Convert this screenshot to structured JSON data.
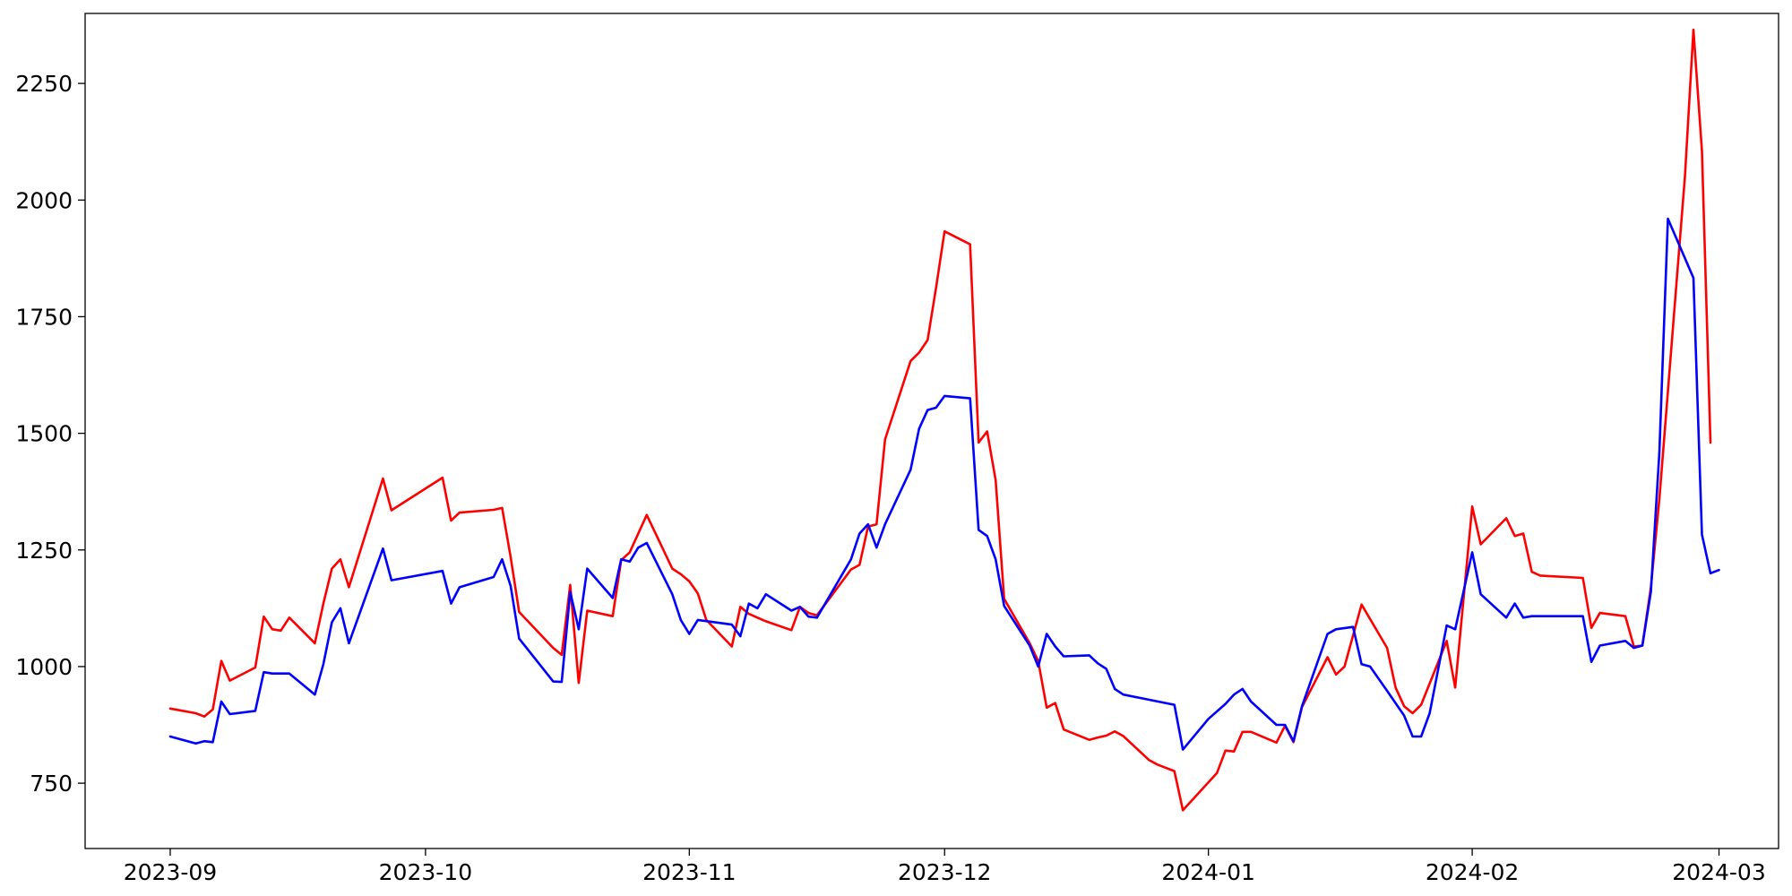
{
  "chart_data": {
    "type": "line",
    "title": "",
    "xlabel": "",
    "ylabel": "",
    "x_axis": {
      "kind": "date",
      "range": [
        "2023-08-22",
        "2024-03-08"
      ],
      "ticks": [
        "2023-09-01",
        "2023-10-01",
        "2023-11-01",
        "2023-12-01",
        "2024-01-01",
        "2024-02-01",
        "2024-03-01"
      ],
      "tick_labels": [
        "2023-09",
        "2023-10",
        "2023-11",
        "2023-12",
        "2024-01",
        "2024-02",
        "2024-03"
      ]
    },
    "y_axis": {
      "range": [
        610,
        2400
      ],
      "ticks": [
        750,
        1000,
        1250,
        1500,
        1750,
        2000,
        2250
      ],
      "tick_labels": [
        "750",
        "1000",
        "1250",
        "1500",
        "1750",
        "2000",
        "2250"
      ]
    },
    "grid": false,
    "legend": "none",
    "series": [
      {
        "color": "#ff0000",
        "points": [
          [
            "2023-09-01",
            910
          ],
          [
            "2023-09-04",
            900
          ],
          [
            "2023-09-05",
            893
          ],
          [
            "2023-09-06",
            908
          ],
          [
            "2023-09-07",
            1012
          ],
          [
            "2023-09-08",
            970
          ],
          [
            "2023-09-11",
            998
          ],
          [
            "2023-09-12",
            1107
          ],
          [
            "2023-09-13",
            1080
          ],
          [
            "2023-09-14",
            1077
          ],
          [
            "2023-09-15",
            1105
          ],
          [
            "2023-09-18",
            1050
          ],
          [
            "2023-09-19",
            1135
          ],
          [
            "2023-09-20",
            1210
          ],
          [
            "2023-09-21",
            1230
          ],
          [
            "2023-09-22",
            1170
          ],
          [
            "2023-09-26",
            1403
          ],
          [
            "2023-09-27",
            1335
          ],
          [
            "2023-10-03",
            1405
          ],
          [
            "2023-10-04",
            1313
          ],
          [
            "2023-10-05",
            1330
          ],
          [
            "2023-10-09",
            1336
          ],
          [
            "2023-10-10",
            1340
          ],
          [
            "2023-10-11",
            1235
          ],
          [
            "2023-10-12",
            1117
          ],
          [
            "2023-10-16",
            1040
          ],
          [
            "2023-10-17",
            1025
          ],
          [
            "2023-10-18",
            1175
          ],
          [
            "2023-10-19",
            965
          ],
          [
            "2023-10-20",
            1120
          ],
          [
            "2023-10-23",
            1108
          ],
          [
            "2023-10-24",
            1228
          ],
          [
            "2023-10-25",
            1245
          ],
          [
            "2023-10-27",
            1325
          ],
          [
            "2023-10-30",
            1210
          ],
          [
            "2023-10-31",
            1198
          ],
          [
            "2023-11-01",
            1183
          ],
          [
            "2023-11-02",
            1157
          ],
          [
            "2023-11-03",
            1100
          ],
          [
            "2023-11-06",
            1043
          ],
          [
            "2023-11-07",
            1128
          ],
          [
            "2023-11-08",
            1113
          ],
          [
            "2023-11-09",
            1105
          ],
          [
            "2023-11-10",
            1097
          ],
          [
            "2023-11-13",
            1078
          ],
          [
            "2023-11-14",
            1128
          ],
          [
            "2023-11-15",
            1115
          ],
          [
            "2023-11-16",
            1110
          ],
          [
            "2023-11-20",
            1208
          ],
          [
            "2023-11-21",
            1218
          ],
          [
            "2023-11-22",
            1300
          ],
          [
            "2023-11-23",
            1305
          ],
          [
            "2023-11-24",
            1487
          ],
          [
            "2023-11-27",
            1655
          ],
          [
            "2023-11-28",
            1673
          ],
          [
            "2023-11-29",
            1700
          ],
          [
            "2023-11-30",
            1812
          ],
          [
            "2023-12-01",
            1933
          ],
          [
            "2023-12-04",
            1905
          ],
          [
            "2023-12-05",
            1480
          ],
          [
            "2023-12-06",
            1504
          ],
          [
            "2023-12-07",
            1400
          ],
          [
            "2023-12-08",
            1145
          ],
          [
            "2023-12-11",
            1050
          ],
          [
            "2023-12-12",
            1012
          ],
          [
            "2023-12-13",
            912
          ],
          [
            "2023-12-14",
            922
          ],
          [
            "2023-12-15",
            865
          ],
          [
            "2023-12-18",
            843
          ],
          [
            "2023-12-19",
            848
          ],
          [
            "2023-12-20",
            852
          ],
          [
            "2023-12-21",
            861
          ],
          [
            "2023-12-22",
            851
          ],
          [
            "2023-12-25",
            800
          ],
          [
            "2023-12-26",
            790
          ],
          [
            "2023-12-28",
            776
          ],
          [
            "2023-12-29",
            692
          ],
          [
            "2024-01-02",
            772
          ],
          [
            "2024-01-03",
            820
          ],
          [
            "2024-01-04",
            818
          ],
          [
            "2024-01-05",
            860
          ],
          [
            "2024-01-06",
            860
          ],
          [
            "2024-01-09",
            837
          ],
          [
            "2024-01-10",
            873
          ],
          [
            "2024-01-11",
            838
          ],
          [
            "2024-01-12",
            913
          ],
          [
            "2024-01-15",
            1020
          ],
          [
            "2024-01-16",
            983
          ],
          [
            "2024-01-17",
            1000
          ],
          [
            "2024-01-19",
            1133
          ],
          [
            "2024-01-22",
            1040
          ],
          [
            "2024-01-23",
            955
          ],
          [
            "2024-01-24",
            915
          ],
          [
            "2024-01-25",
            900
          ],
          [
            "2024-01-26",
            918
          ],
          [
            "2024-01-29",
            1055
          ],
          [
            "2024-01-30",
            955
          ],
          [
            "2024-02-01",
            1343
          ],
          [
            "2024-02-02",
            1262
          ],
          [
            "2024-02-05",
            1318
          ],
          [
            "2024-02-06",
            1280
          ],
          [
            "2024-02-07",
            1285
          ],
          [
            "2024-02-08",
            1203
          ],
          [
            "2024-02-09",
            1195
          ],
          [
            "2024-02-14",
            1190
          ],
          [
            "2024-02-15",
            1083
          ],
          [
            "2024-02-16",
            1115
          ],
          [
            "2024-02-19",
            1108
          ],
          [
            "2024-02-20",
            1043
          ],
          [
            "2024-02-21",
            1045
          ],
          [
            "2024-02-22",
            1170
          ],
          [
            "2024-02-23",
            1360
          ],
          [
            "2024-02-26",
            2050
          ],
          [
            "2024-02-27",
            2365
          ],
          [
            "2024-02-28",
            2105
          ],
          [
            "2024-02-29",
            1480
          ]
        ]
      },
      {
        "color": "#0000ff",
        "points": [
          [
            "2023-09-01",
            850
          ],
          [
            "2023-09-04",
            835
          ],
          [
            "2023-09-05",
            840
          ],
          [
            "2023-09-06",
            838
          ],
          [
            "2023-09-07",
            925
          ],
          [
            "2023-09-08",
            898
          ],
          [
            "2023-09-11",
            905
          ],
          [
            "2023-09-12",
            988
          ],
          [
            "2023-09-13",
            985
          ],
          [
            "2023-09-14",
            985
          ],
          [
            "2023-09-15",
            985
          ],
          [
            "2023-09-18",
            940
          ],
          [
            "2023-09-19",
            1005
          ],
          [
            "2023-09-20",
            1095
          ],
          [
            "2023-09-21",
            1125
          ],
          [
            "2023-09-22",
            1050
          ],
          [
            "2023-09-26",
            1253
          ],
          [
            "2023-09-27",
            1185
          ],
          [
            "2023-10-03",
            1205
          ],
          [
            "2023-10-04",
            1135
          ],
          [
            "2023-10-05",
            1170
          ],
          [
            "2023-10-09",
            1192
          ],
          [
            "2023-10-10",
            1230
          ],
          [
            "2023-10-11",
            1173
          ],
          [
            "2023-10-12",
            1060
          ],
          [
            "2023-10-16",
            968
          ],
          [
            "2023-10-17",
            967
          ],
          [
            "2023-10-18",
            1160
          ],
          [
            "2023-10-19",
            1080
          ],
          [
            "2023-10-20",
            1210
          ],
          [
            "2023-10-23",
            1147
          ],
          [
            "2023-10-24",
            1230
          ],
          [
            "2023-10-25",
            1225
          ],
          [
            "2023-10-26",
            1255
          ],
          [
            "2023-10-27",
            1265
          ],
          [
            "2023-10-30",
            1155
          ],
          [
            "2023-10-31",
            1100
          ],
          [
            "2023-11-01",
            1070
          ],
          [
            "2023-11-02",
            1100
          ],
          [
            "2023-11-06",
            1090
          ],
          [
            "2023-11-07",
            1065
          ],
          [
            "2023-11-08",
            1135
          ],
          [
            "2023-11-09",
            1125
          ],
          [
            "2023-11-10",
            1155
          ],
          [
            "2023-11-13",
            1120
          ],
          [
            "2023-11-14",
            1128
          ],
          [
            "2023-11-15",
            1107
          ],
          [
            "2023-11-16",
            1105
          ],
          [
            "2023-11-20",
            1230
          ],
          [
            "2023-11-21",
            1285
          ],
          [
            "2023-11-22",
            1305
          ],
          [
            "2023-11-23",
            1255
          ],
          [
            "2023-11-24",
            1305
          ],
          [
            "2023-11-27",
            1422
          ],
          [
            "2023-11-28",
            1510
          ],
          [
            "2023-11-29",
            1550
          ],
          [
            "2023-11-30",
            1555
          ],
          [
            "2023-12-01",
            1580
          ],
          [
            "2023-12-04",
            1575
          ],
          [
            "2023-12-05",
            1293
          ],
          [
            "2023-12-06",
            1280
          ],
          [
            "2023-12-07",
            1230
          ],
          [
            "2023-12-08",
            1130
          ],
          [
            "2023-12-11",
            1045
          ],
          [
            "2023-12-12",
            1000
          ],
          [
            "2023-12-13",
            1070
          ],
          [
            "2023-12-14",
            1043
          ],
          [
            "2023-12-15",
            1022
          ],
          [
            "2023-12-18",
            1024
          ],
          [
            "2023-12-19",
            1007
          ],
          [
            "2023-12-20",
            995
          ],
          [
            "2023-12-21",
            952
          ],
          [
            "2023-12-22",
            940
          ],
          [
            "2023-12-28",
            918
          ],
          [
            "2023-12-29",
            822
          ],
          [
            "2024-01-01",
            888
          ],
          [
            "2024-01-03",
            920
          ],
          [
            "2024-01-04",
            940
          ],
          [
            "2024-01-05",
            952
          ],
          [
            "2024-01-06",
            925
          ],
          [
            "2024-01-09",
            875
          ],
          [
            "2024-01-10",
            875
          ],
          [
            "2024-01-11",
            840
          ],
          [
            "2024-01-12",
            915
          ],
          [
            "2024-01-15",
            1070
          ],
          [
            "2024-01-16",
            1080
          ],
          [
            "2024-01-18",
            1085
          ],
          [
            "2024-01-19",
            1005
          ],
          [
            "2024-01-20",
            1000
          ],
          [
            "2024-01-22",
            948
          ],
          [
            "2024-01-24",
            895
          ],
          [
            "2024-01-25",
            850
          ],
          [
            "2024-01-26",
            850
          ],
          [
            "2024-01-27",
            900
          ],
          [
            "2024-01-29",
            1088
          ],
          [
            "2024-01-30",
            1080
          ],
          [
            "2024-02-01",
            1245
          ],
          [
            "2024-02-02",
            1155
          ],
          [
            "2024-02-05",
            1105
          ],
          [
            "2024-02-06",
            1135
          ],
          [
            "2024-02-07",
            1105
          ],
          [
            "2024-02-08",
            1108
          ],
          [
            "2024-02-14",
            1108
          ],
          [
            "2024-02-15",
            1010
          ],
          [
            "2024-02-16",
            1045
          ],
          [
            "2024-02-19",
            1055
          ],
          [
            "2024-02-20",
            1040
          ],
          [
            "2024-02-21",
            1045
          ],
          [
            "2024-02-22",
            1160
          ],
          [
            "2024-02-23",
            1460
          ],
          [
            "2024-02-24",
            1960
          ],
          [
            "2024-02-27",
            1833
          ],
          [
            "2024-02-28",
            1283
          ],
          [
            "2024-02-29",
            1200
          ],
          [
            "2024-03-01",
            1207
          ]
        ]
      }
    ]
  }
}
